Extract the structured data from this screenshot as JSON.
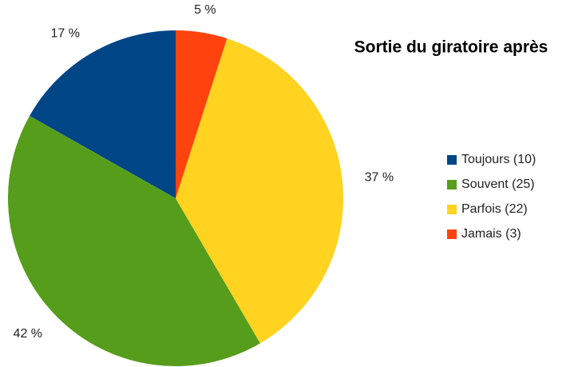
{
  "chart_data": {
    "type": "pie",
    "title": "Sortie du giratoire après",
    "categories": [
      "Toujours (10)",
      "Souvent (25)",
      "Parfois (22)",
      "Jamais (3)"
    ],
    "values": [
      17,
      42,
      37,
      5
    ],
    "value_labels": [
      "17 %",
      "42 %",
      "37 %",
      "5 %"
    ],
    "colors": [
      "#004586",
      "#579d1c",
      "#ffd320",
      "#ff420e"
    ],
    "legend": "right"
  }
}
